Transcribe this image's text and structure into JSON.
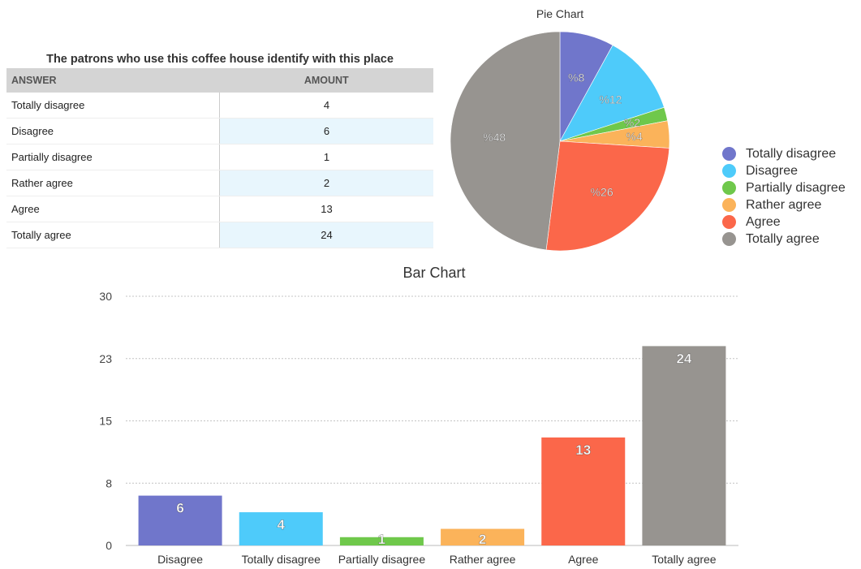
{
  "table": {
    "title": "The patrons who use this coffee house identify with this place",
    "headers": [
      "ANSWER",
      "AMOUNT"
    ],
    "rows": [
      {
        "answer": "Totally disagree",
        "amount": "4"
      },
      {
        "answer": "Disagree",
        "amount": "6"
      },
      {
        "answer": "Partially disagree",
        "amount": "1"
      },
      {
        "answer": "Rather agree",
        "amount": "2"
      },
      {
        "answer": "Agree",
        "amount": "13"
      },
      {
        "answer": "Totally agree",
        "amount": "24"
      }
    ]
  },
  "legend": {
    "items": [
      {
        "label": "Totally disagree",
        "color": "#7076cb"
      },
      {
        "label": "Disagree",
        "color": "#4ecbfa"
      },
      {
        "label": "Partially disagree",
        "color": "#6fc84b"
      },
      {
        "label": "Rather agree",
        "color": "#fbb35a"
      },
      {
        "label": "Agree",
        "color": "#fb674a"
      },
      {
        "label": "Totally agree",
        "color": "#979490"
      }
    ]
  },
  "chart_data": [
    {
      "type": "pie",
      "title": "Pie Chart",
      "categories": [
        "Totally disagree",
        "Disagree",
        "Partially disagree",
        "Rather agree",
        "Agree",
        "Totally agree"
      ],
      "values": [
        4,
        6,
        1,
        2,
        13,
        24
      ],
      "data_labels": [
        "%8",
        "%12",
        "%2",
        "%4",
        "%26",
        "%48"
      ],
      "colors": [
        "#7076cb",
        "#4ecbfa",
        "#6fc84b",
        "#fbb35a",
        "#fb674a",
        "#979490"
      ],
      "legend": "right"
    },
    {
      "type": "bar",
      "title": "Bar Chart",
      "categories": [
        "Disagree",
        "Totally disagree",
        "Partially disagree",
        "Rather agree",
        "Agree",
        "Totally agree"
      ],
      "values": [
        6,
        4,
        1,
        2,
        13,
        24
      ],
      "colors": [
        "#7076cb",
        "#4ecbfa",
        "#6fc84b",
        "#fbb35a",
        "#fb674a",
        "#979490"
      ],
      "yticks": [
        "0",
        "8",
        "15",
        "23",
        "30"
      ],
      "ylim": [
        0,
        30
      ],
      "grid": true
    }
  ]
}
